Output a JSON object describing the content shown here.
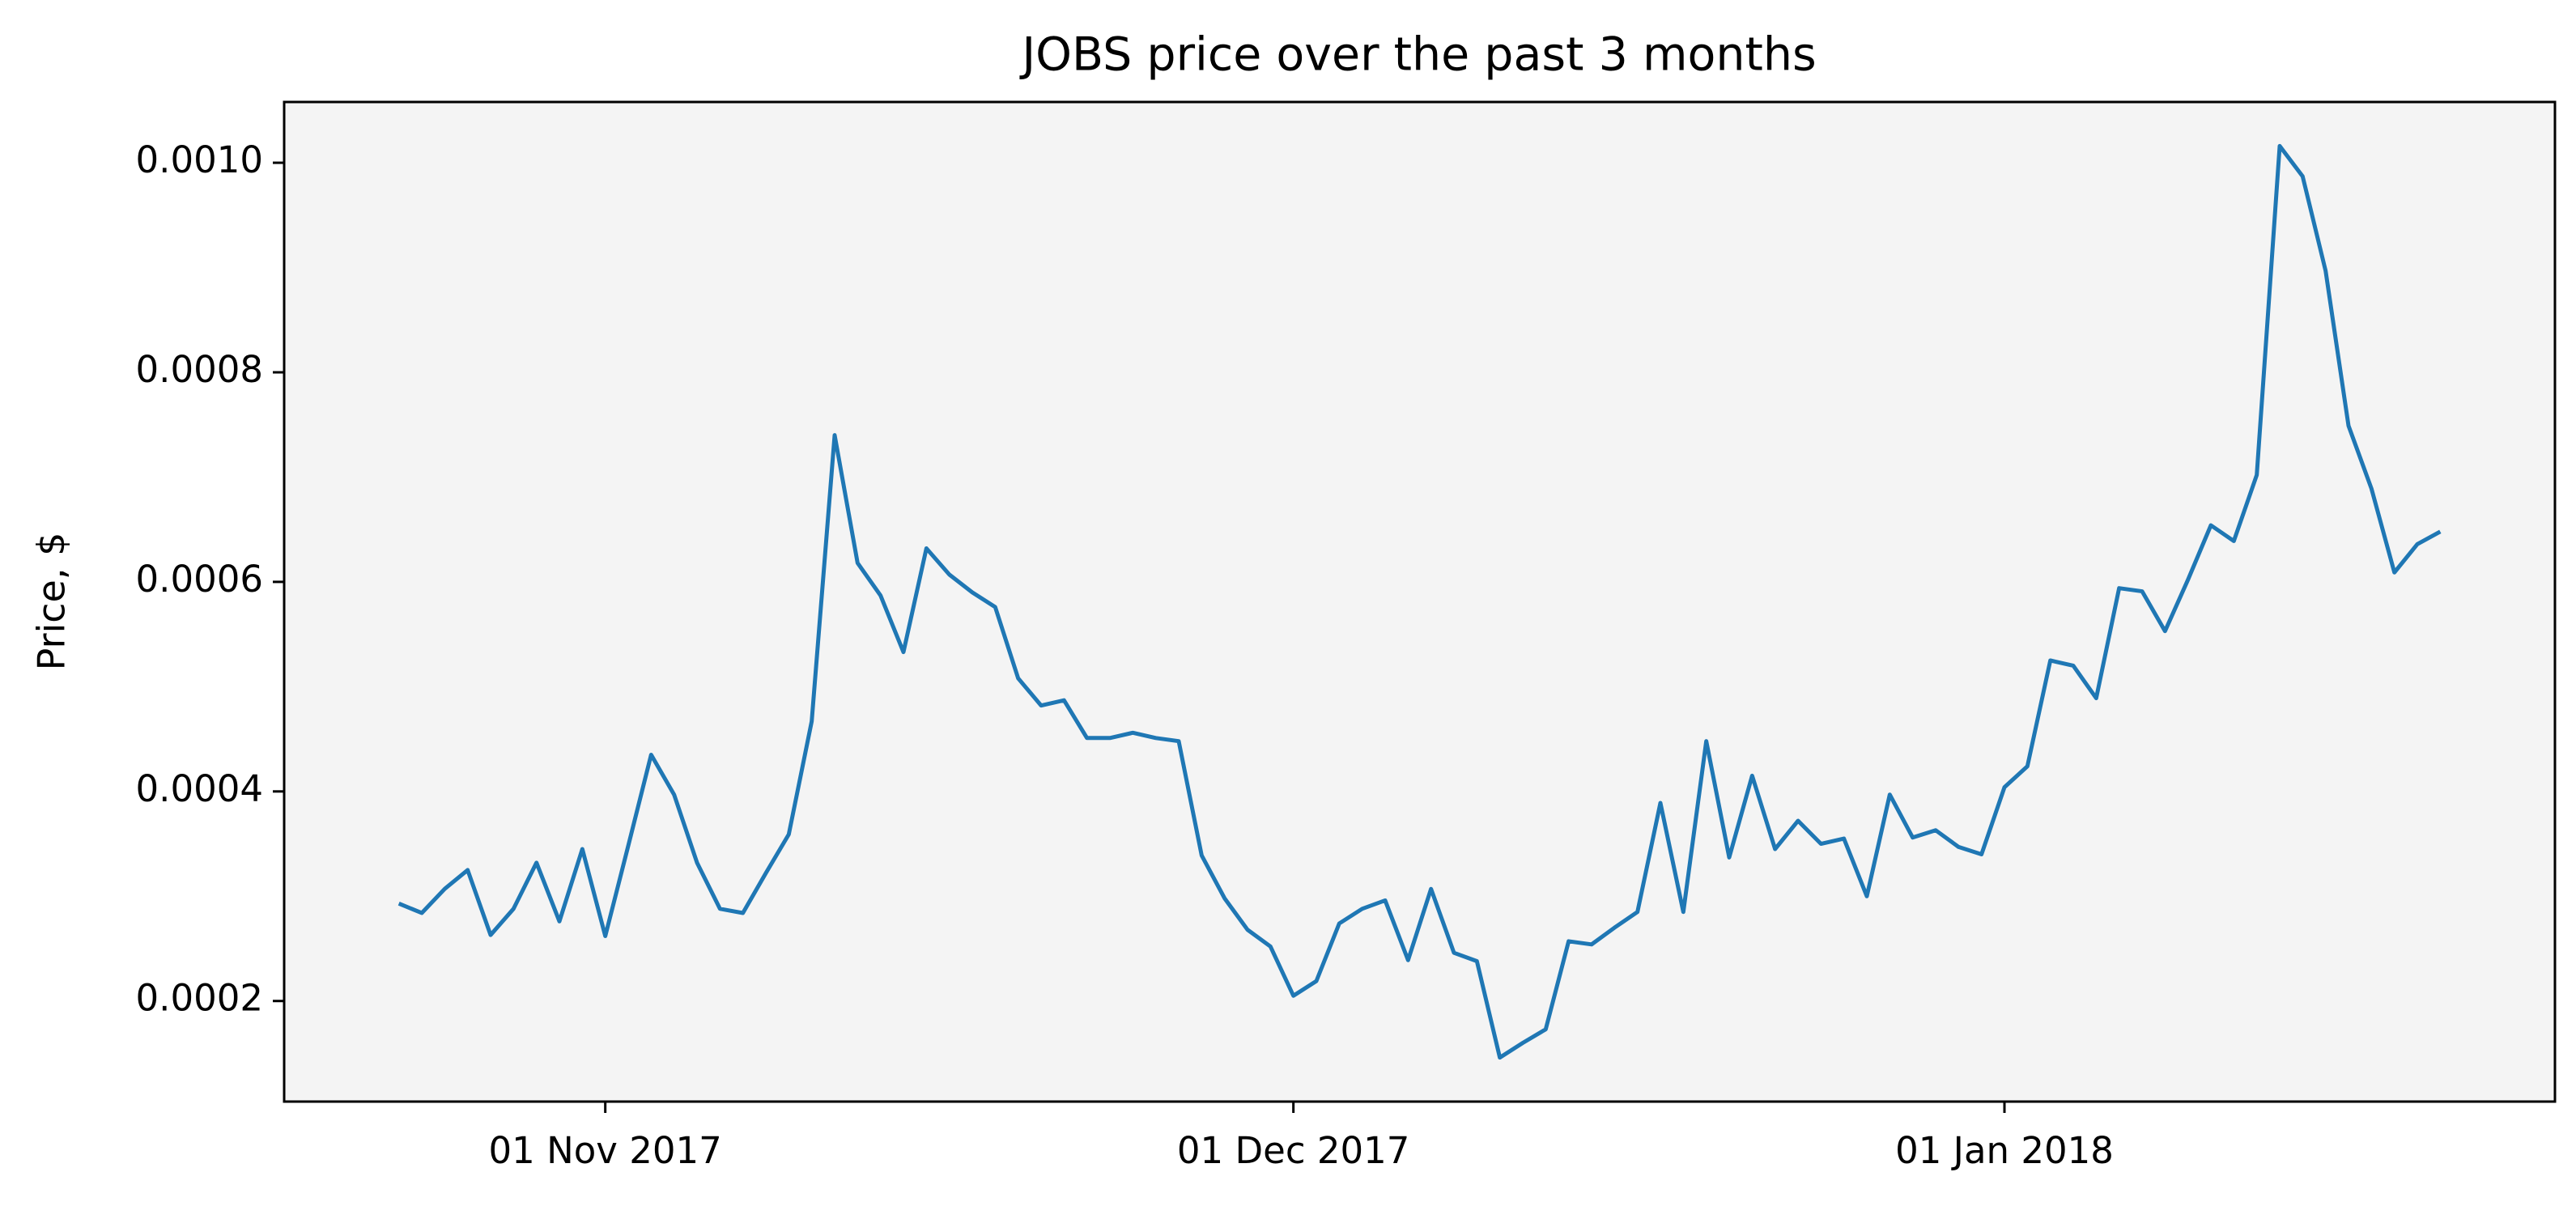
{
  "chart_data": {
    "type": "line",
    "title": "JOBS price over the past 3 months",
    "y_label": "Price, $",
    "color": "#1f77b4",
    "background": "#f4f4f4",
    "x": [
      "2017-10-23",
      "2017-10-24",
      "2017-10-25",
      "2017-10-26",
      "2017-10-27",
      "2017-10-28",
      "2017-10-29",
      "2017-10-30",
      "2017-10-31",
      "2017-11-01",
      "2017-11-02",
      "2017-11-03",
      "2017-11-04",
      "2017-11-05",
      "2017-11-06",
      "2017-11-07",
      "2017-11-08",
      "2017-11-09",
      "2017-11-10",
      "2017-11-11",
      "2017-11-12",
      "2017-11-13",
      "2017-11-14",
      "2017-11-15",
      "2017-11-16",
      "2017-11-17",
      "2017-11-18",
      "2017-11-19",
      "2017-11-20",
      "2017-11-21",
      "2017-11-22",
      "2017-11-23",
      "2017-11-24",
      "2017-11-25",
      "2017-11-26",
      "2017-11-27",
      "2017-11-28",
      "2017-11-29",
      "2017-11-30",
      "2017-12-01",
      "2017-12-02",
      "2017-12-03",
      "2017-12-04",
      "2017-12-05",
      "2017-12-06",
      "2017-12-07",
      "2017-12-08",
      "2017-12-09",
      "2017-12-10",
      "2017-12-11",
      "2017-12-12",
      "2017-12-13",
      "2017-12-14",
      "2017-12-15",
      "2017-12-16",
      "2017-12-17",
      "2017-12-18",
      "2017-12-19",
      "2017-12-20",
      "2017-12-21",
      "2017-12-22",
      "2017-12-23",
      "2017-12-24",
      "2017-12-25",
      "2017-12-26",
      "2017-12-27",
      "2017-12-28",
      "2017-12-29",
      "2017-12-30",
      "2017-12-31",
      "2018-01-01",
      "2018-01-02",
      "2018-01-03",
      "2018-01-04",
      "2018-01-05",
      "2018-01-06",
      "2018-01-07",
      "2018-01-08",
      "2018-01-09",
      "2018-01-10",
      "2018-01-11",
      "2018-01-12",
      "2018-01-13",
      "2018-01-14",
      "2018-01-15",
      "2018-01-16",
      "2018-01-17",
      "2018-01-18",
      "2018-01-19",
      "2018-01-20"
    ],
    "values": [
      0.000293,
      0.000284,
      0.000307,
      0.000325,
      0.000263,
      0.000288,
      0.000332,
      0.000276,
      0.000345,
      0.000262,
      0.000348,
      0.000435,
      0.000397,
      0.000332,
      0.000288,
      0.000284,
      0.000322,
      0.000359,
      0.000467,
      0.00074,
      0.000618,
      0.000587,
      0.000533,
      0.000632,
      0.000607,
      0.00059,
      0.000576,
      0.000508,
      0.000482,
      0.000487,
      0.000451,
      0.000451,
      0.000456,
      0.000451,
      0.000448,
      0.000339,
      0.000298,
      0.000268,
      0.000252,
      0.000205,
      0.000219,
      0.000274,
      0.000288,
      0.000296,
      0.000239,
      0.000307,
      0.000246,
      0.000238,
      0.000146,
      0.00016,
      0.000173,
      0.000257,
      0.000254,
      0.00027,
      0.000285,
      0.000389,
      0.000285,
      0.000448,
      0.000337,
      0.000415,
      0.000345,
      0.000372,
      0.00035,
      0.000355,
      0.0003,
      0.000397,
      0.000356,
      0.000363,
      0.000347,
      0.00034,
      0.000404,
      0.000424,
      0.000525,
      0.00052,
      0.000489,
      0.000594,
      0.000591,
      0.000553,
      0.000602,
      0.000654,
      0.000639,
      0.000702,
      0.001016,
      0.000987,
      0.000897,
      0.000749,
      0.000689,
      0.000609,
      0.000636,
      0.000648
    ],
    "xlim": [
      "2017-10-18",
      "2018-01-25"
    ],
    "xticks": [
      {
        "value": "2017-11-01",
        "label": "01 Nov 2017"
      },
      {
        "value": "2017-12-01",
        "label": "01 Dec 2017"
      },
      {
        "value": "2018-01-01",
        "label": "01 Jan 2018"
      }
    ],
    "ylim": [
      0.000104,
      0.001058
    ],
    "yticks": [
      0.0002,
      0.0004,
      0.0006,
      0.0008,
      {
        "value": 0.001,
        "label": "0.0010"
      }
    ],
    "grid": false
  }
}
